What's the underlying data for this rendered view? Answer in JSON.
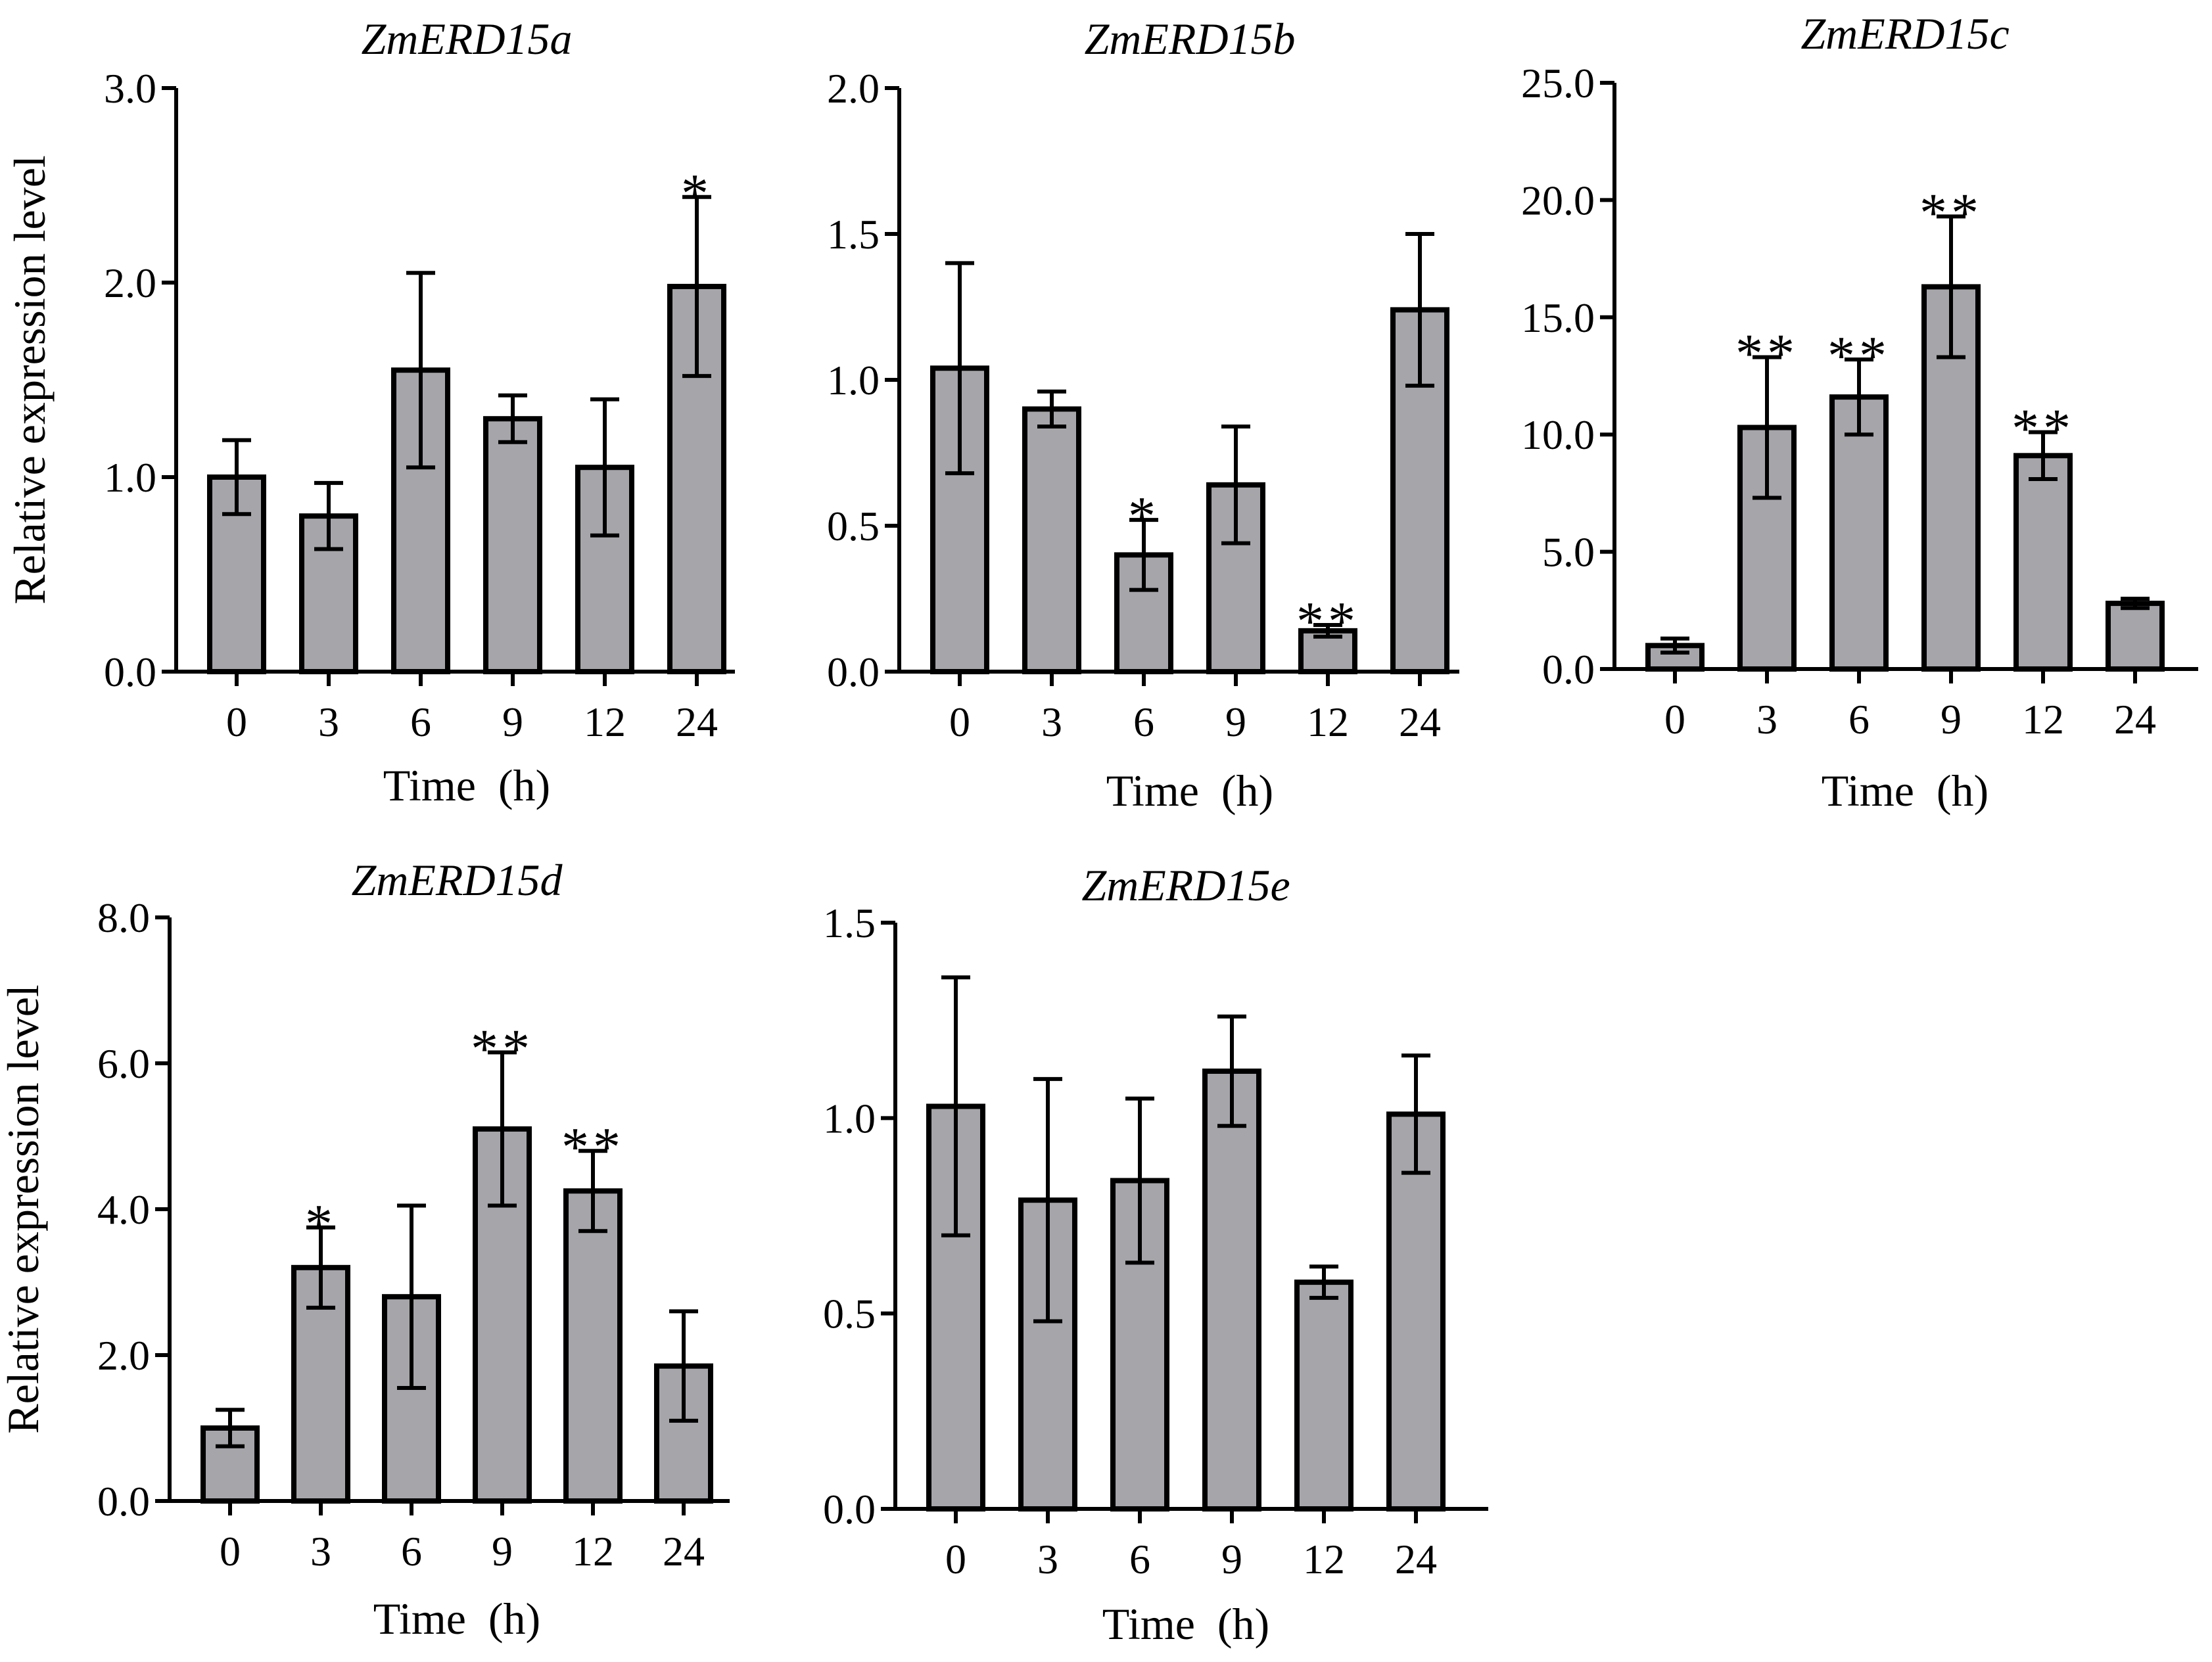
{
  "chart_data": [
    {
      "type": "bar",
      "title": "ZmERD15a",
      "xlabel": "Time  (h)",
      "ylabel": "Relative expression level",
      "categories": [
        "0",
        "3",
        "6",
        "9",
        "12",
        "24"
      ],
      "values": [
        1.0,
        0.8,
        1.55,
        1.3,
        1.05,
        1.98
      ],
      "errors": [
        0.19,
        0.17,
        0.5,
        0.12,
        0.35,
        0.46
      ],
      "significance": [
        "",
        "",
        "",
        "",
        "",
        "*"
      ],
      "ylim": [
        0,
        3
      ],
      "yticks": [
        0,
        1,
        2,
        3
      ],
      "ytick_labels": [
        "0.0",
        "1.0",
        "2.0",
        "3.0"
      ]
    },
    {
      "type": "bar",
      "title": "ZmERD15b",
      "xlabel": "Time  (h)",
      "ylabel": "",
      "categories": [
        "0",
        "3",
        "6",
        "9",
        "12",
        "24"
      ],
      "values": [
        1.04,
        0.9,
        0.4,
        0.64,
        0.14,
        1.24
      ],
      "errors": [
        0.36,
        0.06,
        0.12,
        0.2,
        0.02,
        0.26
      ],
      "significance": [
        "",
        "",
        "*",
        "",
        "**",
        ""
      ],
      "ylim": [
        0,
        2
      ],
      "yticks": [
        0,
        0.5,
        1,
        1.5,
        2
      ],
      "ytick_labels": [
        "0.0",
        "0.5",
        "1.0",
        "1.5",
        "2.0"
      ]
    },
    {
      "type": "bar",
      "title": "ZmERD15c",
      "xlabel": "Time  (h)",
      "ylabel": "",
      "categories": [
        "0",
        "3",
        "6",
        "9",
        "12",
        "24"
      ],
      "values": [
        1.0,
        10.3,
        11.6,
        16.3,
        9.1,
        2.8
      ],
      "errors": [
        0.3,
        3.0,
        1.6,
        3.0,
        1.0,
        0.2
      ],
      "significance": [
        "",
        "**",
        "**",
        "**",
        "**",
        ""
      ],
      "ylim": [
        0,
        25
      ],
      "yticks": [
        0,
        5,
        10,
        15,
        20,
        25
      ],
      "ytick_labels": [
        "0.0",
        "5.0",
        "10.0",
        "15.0",
        "20.0",
        "25.0"
      ]
    },
    {
      "type": "bar",
      "title": "ZmERD15d",
      "xlabel": "Time  (h)",
      "ylabel": "Relative expression level",
      "categories": [
        "0",
        "3",
        "6",
        "9",
        "12",
        "24"
      ],
      "values": [
        1.0,
        3.2,
        2.8,
        5.1,
        4.25,
        1.85
      ],
      "errors": [
        0.25,
        0.55,
        1.25,
        1.05,
        0.55,
        0.75
      ],
      "significance": [
        "",
        "*",
        "",
        "**",
        "**",
        ""
      ],
      "ylim": [
        0,
        8
      ],
      "yticks": [
        0,
        2,
        4,
        6,
        8
      ],
      "ytick_labels": [
        "0.0",
        "2.0",
        "4.0",
        "6.0",
        "8.0"
      ]
    },
    {
      "type": "bar",
      "title": "ZmERD15e",
      "xlabel": "Time  (h)",
      "ylabel": "",
      "categories": [
        "0",
        "3",
        "6",
        "9",
        "12",
        "24"
      ],
      "values": [
        1.03,
        0.79,
        0.84,
        1.12,
        0.58,
        1.01
      ],
      "errors": [
        0.33,
        0.31,
        0.21,
        0.14,
        0.04,
        0.15
      ],
      "significance": [
        "",
        "",
        "",
        "",
        "",
        ""
      ],
      "ylim": [
        0,
        1.5
      ],
      "yticks": [
        0,
        0.5,
        1,
        1.5
      ],
      "ytick_labels": [
        "0.0",
        "0.5",
        "1.0",
        "1.5"
      ]
    }
  ]
}
